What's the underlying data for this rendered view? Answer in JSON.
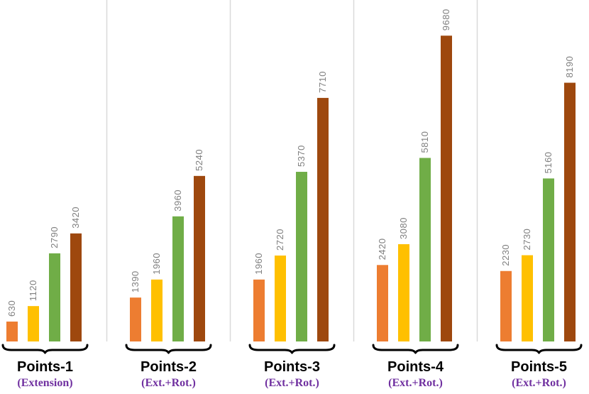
{
  "chart_data": {
    "type": "bar",
    "title": "",
    "xlabel": "",
    "ylabel": "",
    "ylim": [
      0,
      10000
    ],
    "grid": false,
    "legend": "none",
    "series_colors": [
      "#ED7D31",
      "#FFC000",
      "#70AD47",
      "#9E480E"
    ],
    "label_color": "#7F7F7F",
    "subtitle_color": "#7030A0",
    "separator_color": "#D9D9D9",
    "groups": [
      {
        "title": "Points-1",
        "subtitle": "(Extension)",
        "values": [
          630,
          1120,
          2790,
          3420
        ]
      },
      {
        "title": "Points-2",
        "subtitle": "(Ext.+Rot.)",
        "values": [
          1390,
          1960,
          3960,
          5240
        ]
      },
      {
        "title": "Points-3",
        "subtitle": "(Ext.+Rot.)",
        "values": [
          1960,
          2720,
          5370,
          7710
        ]
      },
      {
        "title": "Points-4",
        "subtitle": "(Ext.+Rot.)",
        "values": [
          2420,
          3080,
          5810,
          9680
        ]
      },
      {
        "title": "Points-5",
        "subtitle": "(Ext.+Rot.)",
        "values": [
          2230,
          2730,
          5160,
          8190
        ]
      }
    ]
  }
}
